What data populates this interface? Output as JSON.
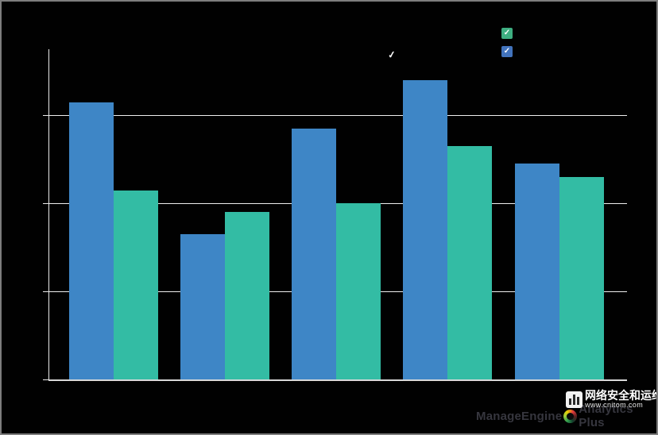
{
  "window": {
    "background": "#010101",
    "frame_border_color": "#7d7d7d"
  },
  "chart_data": {
    "type": "bar",
    "title": "",
    "xlabel": "",
    "ylabel": "",
    "categories": [
      "",
      "",
      "",
      "",
      ""
    ],
    "series": [
      {
        "name": "blue-series",
        "color": "#3E86C6",
        "values": [
          63,
          33,
          57,
          68,
          49
        ]
      },
      {
        "name": "teal-series",
        "color": "#33BCA4",
        "values": [
          43,
          38,
          40,
          53,
          46
        ]
      }
    ],
    "ylim": [
      0,
      75
    ],
    "gridlines_y": [
      20,
      40,
      60
    ],
    "grid": "horizontal-only",
    "axis_color": "#e9e9e9",
    "tick_labels_visible": false,
    "legend_position": "top-right"
  },
  "legend": {
    "check_glyph": "✓",
    "items": [
      {
        "name": "teal-series",
        "color": "#3EAE81",
        "checked": true,
        "label": ""
      },
      {
        "name": "blue-series",
        "color": "#4273BC",
        "checked": true,
        "label": ""
      }
    ]
  },
  "overlay": {
    "check_glyph": "✓"
  },
  "watermarks": {
    "manageengine": {
      "brand": "ManageEngine",
      "product": "Analytics Plus",
      "text_color": "#36363e"
    },
    "cnitom": {
      "title": "网络安全和运维",
      "url": "www.cnitom.com"
    }
  }
}
